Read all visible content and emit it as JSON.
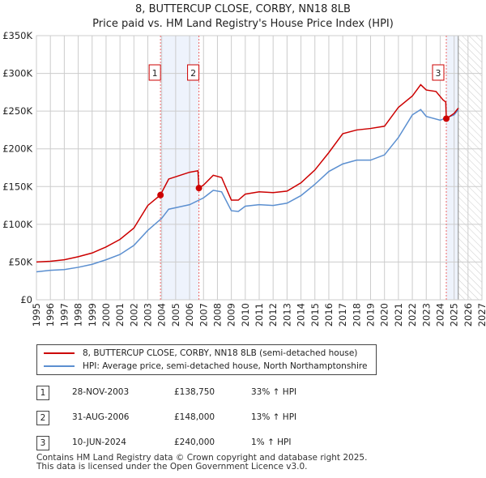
{
  "title": "8, BUTTERCUP CLOSE, CORBY, NN18 8LB",
  "subtitle": "Price paid vs. HM Land Registry's House Price Index (HPI)",
  "chart_data": {
    "type": "line",
    "xlim": [
      1995,
      2027
    ],
    "ylim": [
      0,
      350000
    ],
    "x_ticks": [
      "1995",
      "1996",
      "1997",
      "1998",
      "1999",
      "2000",
      "2001",
      "2002",
      "2003",
      "2004",
      "2005",
      "2006",
      "2007",
      "2008",
      "2009",
      "2010",
      "2011",
      "2012",
      "2013",
      "2014",
      "2015",
      "2016",
      "2017",
      "2018",
      "2019",
      "2020",
      "2021",
      "2022",
      "2023",
      "2024",
      "2025",
      "2026",
      "2027"
    ],
    "y_ticks": [
      {
        "v": 0,
        "label": "£0"
      },
      {
        "v": 50000,
        "label": "£50K"
      },
      {
        "v": 100000,
        "label": "£100K"
      },
      {
        "v": 150000,
        "label": "£150K"
      },
      {
        "v": 200000,
        "label": "£200K"
      },
      {
        "v": 250000,
        "label": "£250K"
      },
      {
        "v": 300000,
        "label": "£300K"
      },
      {
        "v": 350000,
        "label": "£350K"
      }
    ],
    "series": [
      {
        "name": "8, BUTTERCUP CLOSE, CORBY, NN18 8LB (semi-detached house)",
        "color": "#cc0000",
        "x": [
          1995,
          1996,
          1997,
          1998,
          1999,
          2000,
          2001,
          2002,
          2003,
          2003.9,
          2004.5,
          2005,
          2006,
          2006.6,
          2006.67,
          2007,
          2007.7,
          2008.3,
          2009,
          2009.5,
          2010,
          2011,
          2012,
          2013,
          2014,
          2015,
          2016,
          2017,
          2018,
          2019,
          2020,
          2021,
          2022,
          2022.6,
          2023,
          2023.7,
          2024.2,
          2024.4,
          2024.44,
          2025,
          2025.3
        ],
        "y": [
          50000,
          51000,
          53000,
          57000,
          62000,
          70000,
          80000,
          95000,
          125000,
          138750,
          160000,
          163000,
          169000,
          171000,
          148000,
          152000,
          165000,
          162000,
          132000,
          132000,
          140000,
          143000,
          142000,
          144000,
          155000,
          172000,
          195000,
          220000,
          225000,
          227000,
          230000,
          255000,
          270000,
          285000,
          278000,
          276000,
          265000,
          262000,
          240000,
          247000,
          254000
        ]
      },
      {
        "name": "HPI: Average price, semi-detached house, North Northamptonshire",
        "color": "#5b8fd0",
        "x": [
          1995,
          1996,
          1997,
          1998,
          1999,
          2000,
          2001,
          2002,
          2003,
          2004,
          2004.5,
          2005,
          2006,
          2007,
          2007.7,
          2008.3,
          2009,
          2009.5,
          2010,
          2011,
          2012,
          2013,
          2014,
          2015,
          2016,
          2017,
          2018,
          2019,
          2020,
          2021,
          2022,
          2022.6,
          2023,
          2024,
          2025,
          2025.3
        ],
        "y": [
          37000,
          39000,
          40000,
          43000,
          47000,
          53000,
          60000,
          72000,
          92000,
          108000,
          120000,
          122000,
          126000,
          135000,
          145000,
          143000,
          118000,
          117000,
          124000,
          126000,
          125000,
          128000,
          138000,
          153000,
          170000,
          180000,
          185000,
          185000,
          192000,
          215000,
          245000,
          252000,
          243000,
          238000,
          245000,
          252000
        ]
      }
    ],
    "sales": [
      {
        "label": "1",
        "x": 2003.91,
        "y": 138750
      },
      {
        "label": "2",
        "x": 2006.67,
        "y": 148000
      },
      {
        "label": "3",
        "x": 2024.44,
        "y": 240000
      }
    ],
    "shaded": [
      [
        2003.91,
        2006.67
      ],
      [
        2024.44,
        2025.3
      ]
    ],
    "forecast_from": 2025.3
  },
  "legend": [
    "8, BUTTERCUP CLOSE, CORBY, NN18 8LB (semi-detached house)",
    "HPI: Average price, semi-detached house, North Northamptonshire"
  ],
  "transactions": [
    {
      "num": "1",
      "date": "28-NOV-2003",
      "price": "£138,750",
      "hpi": "33% ↑ HPI"
    },
    {
      "num": "2",
      "date": "31-AUG-2006",
      "price": "£148,000",
      "hpi": "13% ↑ HPI"
    },
    {
      "num": "3",
      "date": "10-JUN-2024",
      "price": "£240,000",
      "hpi": "1% ↑ HPI"
    }
  ],
  "footer": [
    "Contains HM Land Registry data © Crown copyright and database right 2025.",
    "This data is licensed under the Open Government Licence v3.0."
  ]
}
